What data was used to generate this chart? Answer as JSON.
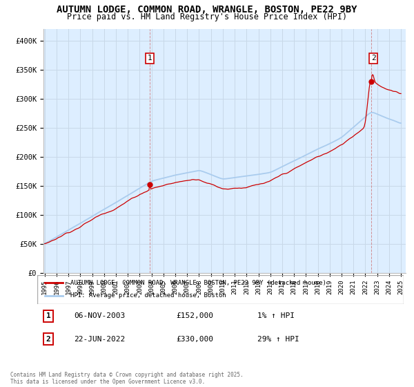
{
  "title": "AUTUMN LODGE, COMMON ROAD, WRANGLE, BOSTON, PE22 9BY",
  "subtitle": "Price paid vs. HM Land Registry's House Price Index (HPI)",
  "title_fontsize": 10,
  "subtitle_fontsize": 8.5,
  "ylim": [
    0,
    420000
  ],
  "yticks": [
    0,
    50000,
    100000,
    150000,
    200000,
    250000,
    300000,
    350000,
    400000
  ],
  "ytick_labels": [
    "£0",
    "£50K",
    "£100K",
    "£150K",
    "£200K",
    "£250K",
    "£300K",
    "£350K",
    "£400K"
  ],
  "xmin": 1995,
  "xmax": 2025,
  "line_color_house": "#cc0000",
  "line_color_hpi": "#aaccee",
  "legend_label_house": "AUTUMN LODGE, COMMON ROAD, WRANGLE, BOSTON, PE22 9BY (detached house)",
  "legend_label_hpi": "HPI: Average price, detached house, Boston",
  "sale1_year": 2003.85,
  "sale1_price": 152000,
  "sale1_date_str": "06-NOV-2003",
  "sale1_price_str": "£152,000",
  "sale1_hpi_str": "1% ↑ HPI",
  "sale2_year": 2022.47,
  "sale2_price": 330000,
  "sale2_date_str": "22-JUN-2022",
  "sale2_price_str": "£330,000",
  "sale2_hpi_str": "29% ↑ HPI",
  "footnote_line1": "Contains HM Land Registry data © Crown copyright and database right 2025.",
  "footnote_line2": "This data is licensed under the Open Government Licence v3.0.",
  "bg_color": "#ffffff",
  "plot_bg_color": "#ddeeff",
  "grid_color": "#c8d8e8"
}
